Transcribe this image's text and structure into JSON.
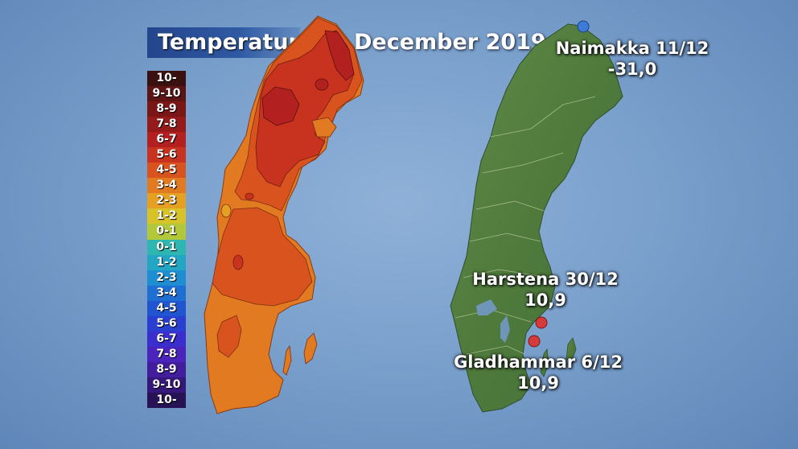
{
  "title": "Temperatur",
  "subtitle": "December 2019",
  "legend": [
    {
      "label": "10-",
      "color": "#3a1010"
    },
    {
      "label": "9-10",
      "color": "#5c1414"
    },
    {
      "label": "8-9",
      "color": "#7a1616"
    },
    {
      "label": "7-8",
      "color": "#951a1a"
    },
    {
      "label": "6-7",
      "color": "#b22020"
    },
    {
      "label": "5-6",
      "color": "#c8331f"
    },
    {
      "label": "4-5",
      "color": "#d9531f"
    },
    {
      "label": "3-4",
      "color": "#e27a22"
    },
    {
      "label": "2-3",
      "color": "#e5a024"
    },
    {
      "label": "1-2",
      "color": "#d8c229"
    },
    {
      "label": "0-1",
      "color": "#b2c83a"
    },
    {
      "label": "0-1",
      "color": "#2fb6b0"
    },
    {
      "label": "1-2",
      "color": "#22a6c4"
    },
    {
      "label": "2-3",
      "color": "#1e8ed0"
    },
    {
      "label": "3-4",
      "color": "#1f6fd2"
    },
    {
      "label": "4-5",
      "color": "#2155d0"
    },
    {
      "label": "5-6",
      "color": "#2a3fd0"
    },
    {
      "label": "6-7",
      "color": "#3a2fcc"
    },
    {
      "label": "7-8",
      "color": "#4a24bb"
    },
    {
      "label": "8-9",
      "color": "#421d9c"
    },
    {
      "label": "9-10",
      "color": "#36187a"
    },
    {
      "label": "10-",
      "color": "#261254"
    }
  ],
  "stations": [
    {
      "name_date": "Naimakka 11/12",
      "value": "-31,0",
      "dot_color": "#3d7bd6"
    },
    {
      "name_date": "Harstena 30/12",
      "value": "10,9",
      "dot_color": "#d63a3a"
    },
    {
      "name_date": "Gladhammar 6/12",
      "value": "10,9",
      "dot_color": "#d63a3a"
    }
  ]
}
